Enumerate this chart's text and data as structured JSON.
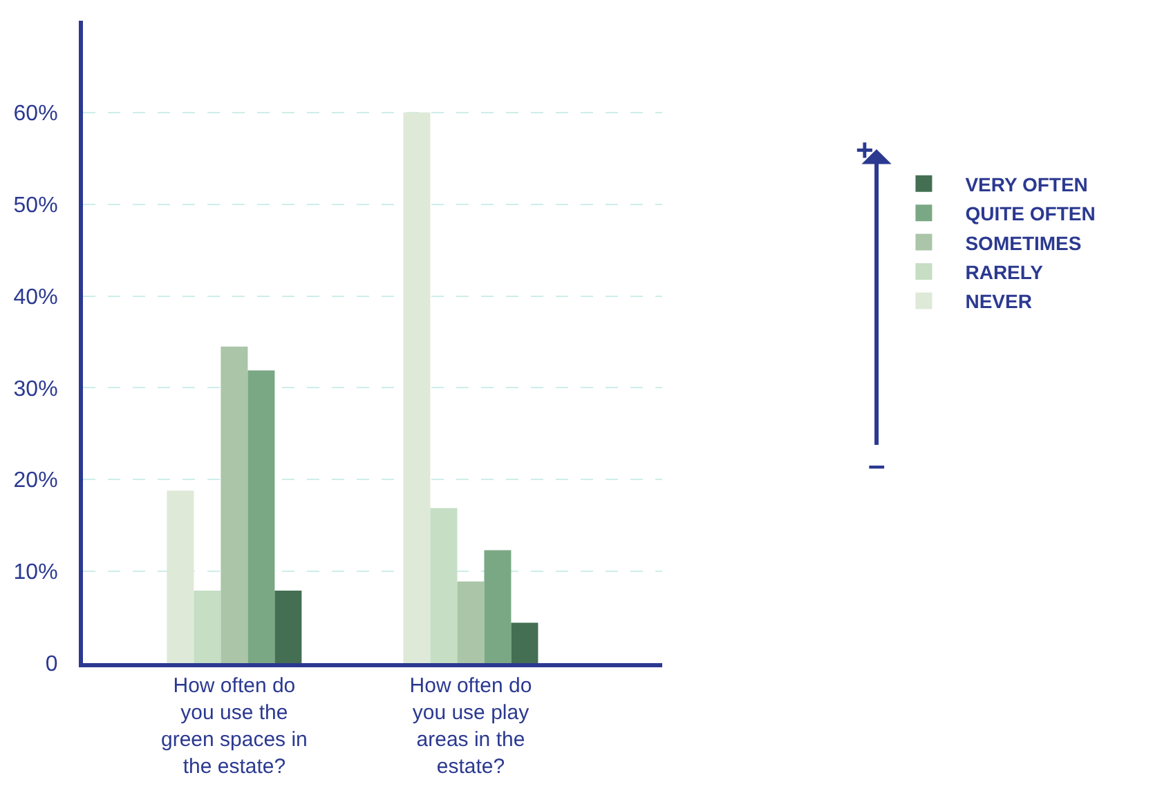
{
  "chart_data": {
    "type": "bar",
    "categories": [
      "How often do you use the green spaces in the estate?",
      "How often do you use play areas in the estate?"
    ],
    "series": [
      {
        "name": "NEVER",
        "color": "#dee9d8",
        "values": [
          18.8,
          60
        ]
      },
      {
        "name": "RARELY",
        "color": "#c5dec4",
        "values": [
          7.9,
          16.9
        ]
      },
      {
        "name": "SOMETIMES",
        "color": "#aac5a8",
        "values": [
          34.5,
          8.9
        ]
      },
      {
        "name": "QUITE OFTEN",
        "color": "#7ba884",
        "values": [
          31.9,
          12.3
        ]
      },
      {
        "name": "VERY OFTEN",
        "color": "#446f52",
        "values": [
          7.9,
          4.4
        ]
      }
    ],
    "ylim": [
      0,
      70
    ],
    "yticks": [
      {
        "value": 0,
        "label": "0"
      },
      {
        "value": 10,
        "label": "10%"
      },
      {
        "value": 20,
        "label": "20%"
      },
      {
        "value": 30,
        "label": "30%"
      },
      {
        "value": 40,
        "label": "40%"
      },
      {
        "value": 50,
        "label": "50%"
      },
      {
        "value": 60,
        "label": "60%"
      }
    ],
    "grid": "y",
    "legend": "right",
    "annotations": [
      "+",
      "–"
    ]
  }
}
